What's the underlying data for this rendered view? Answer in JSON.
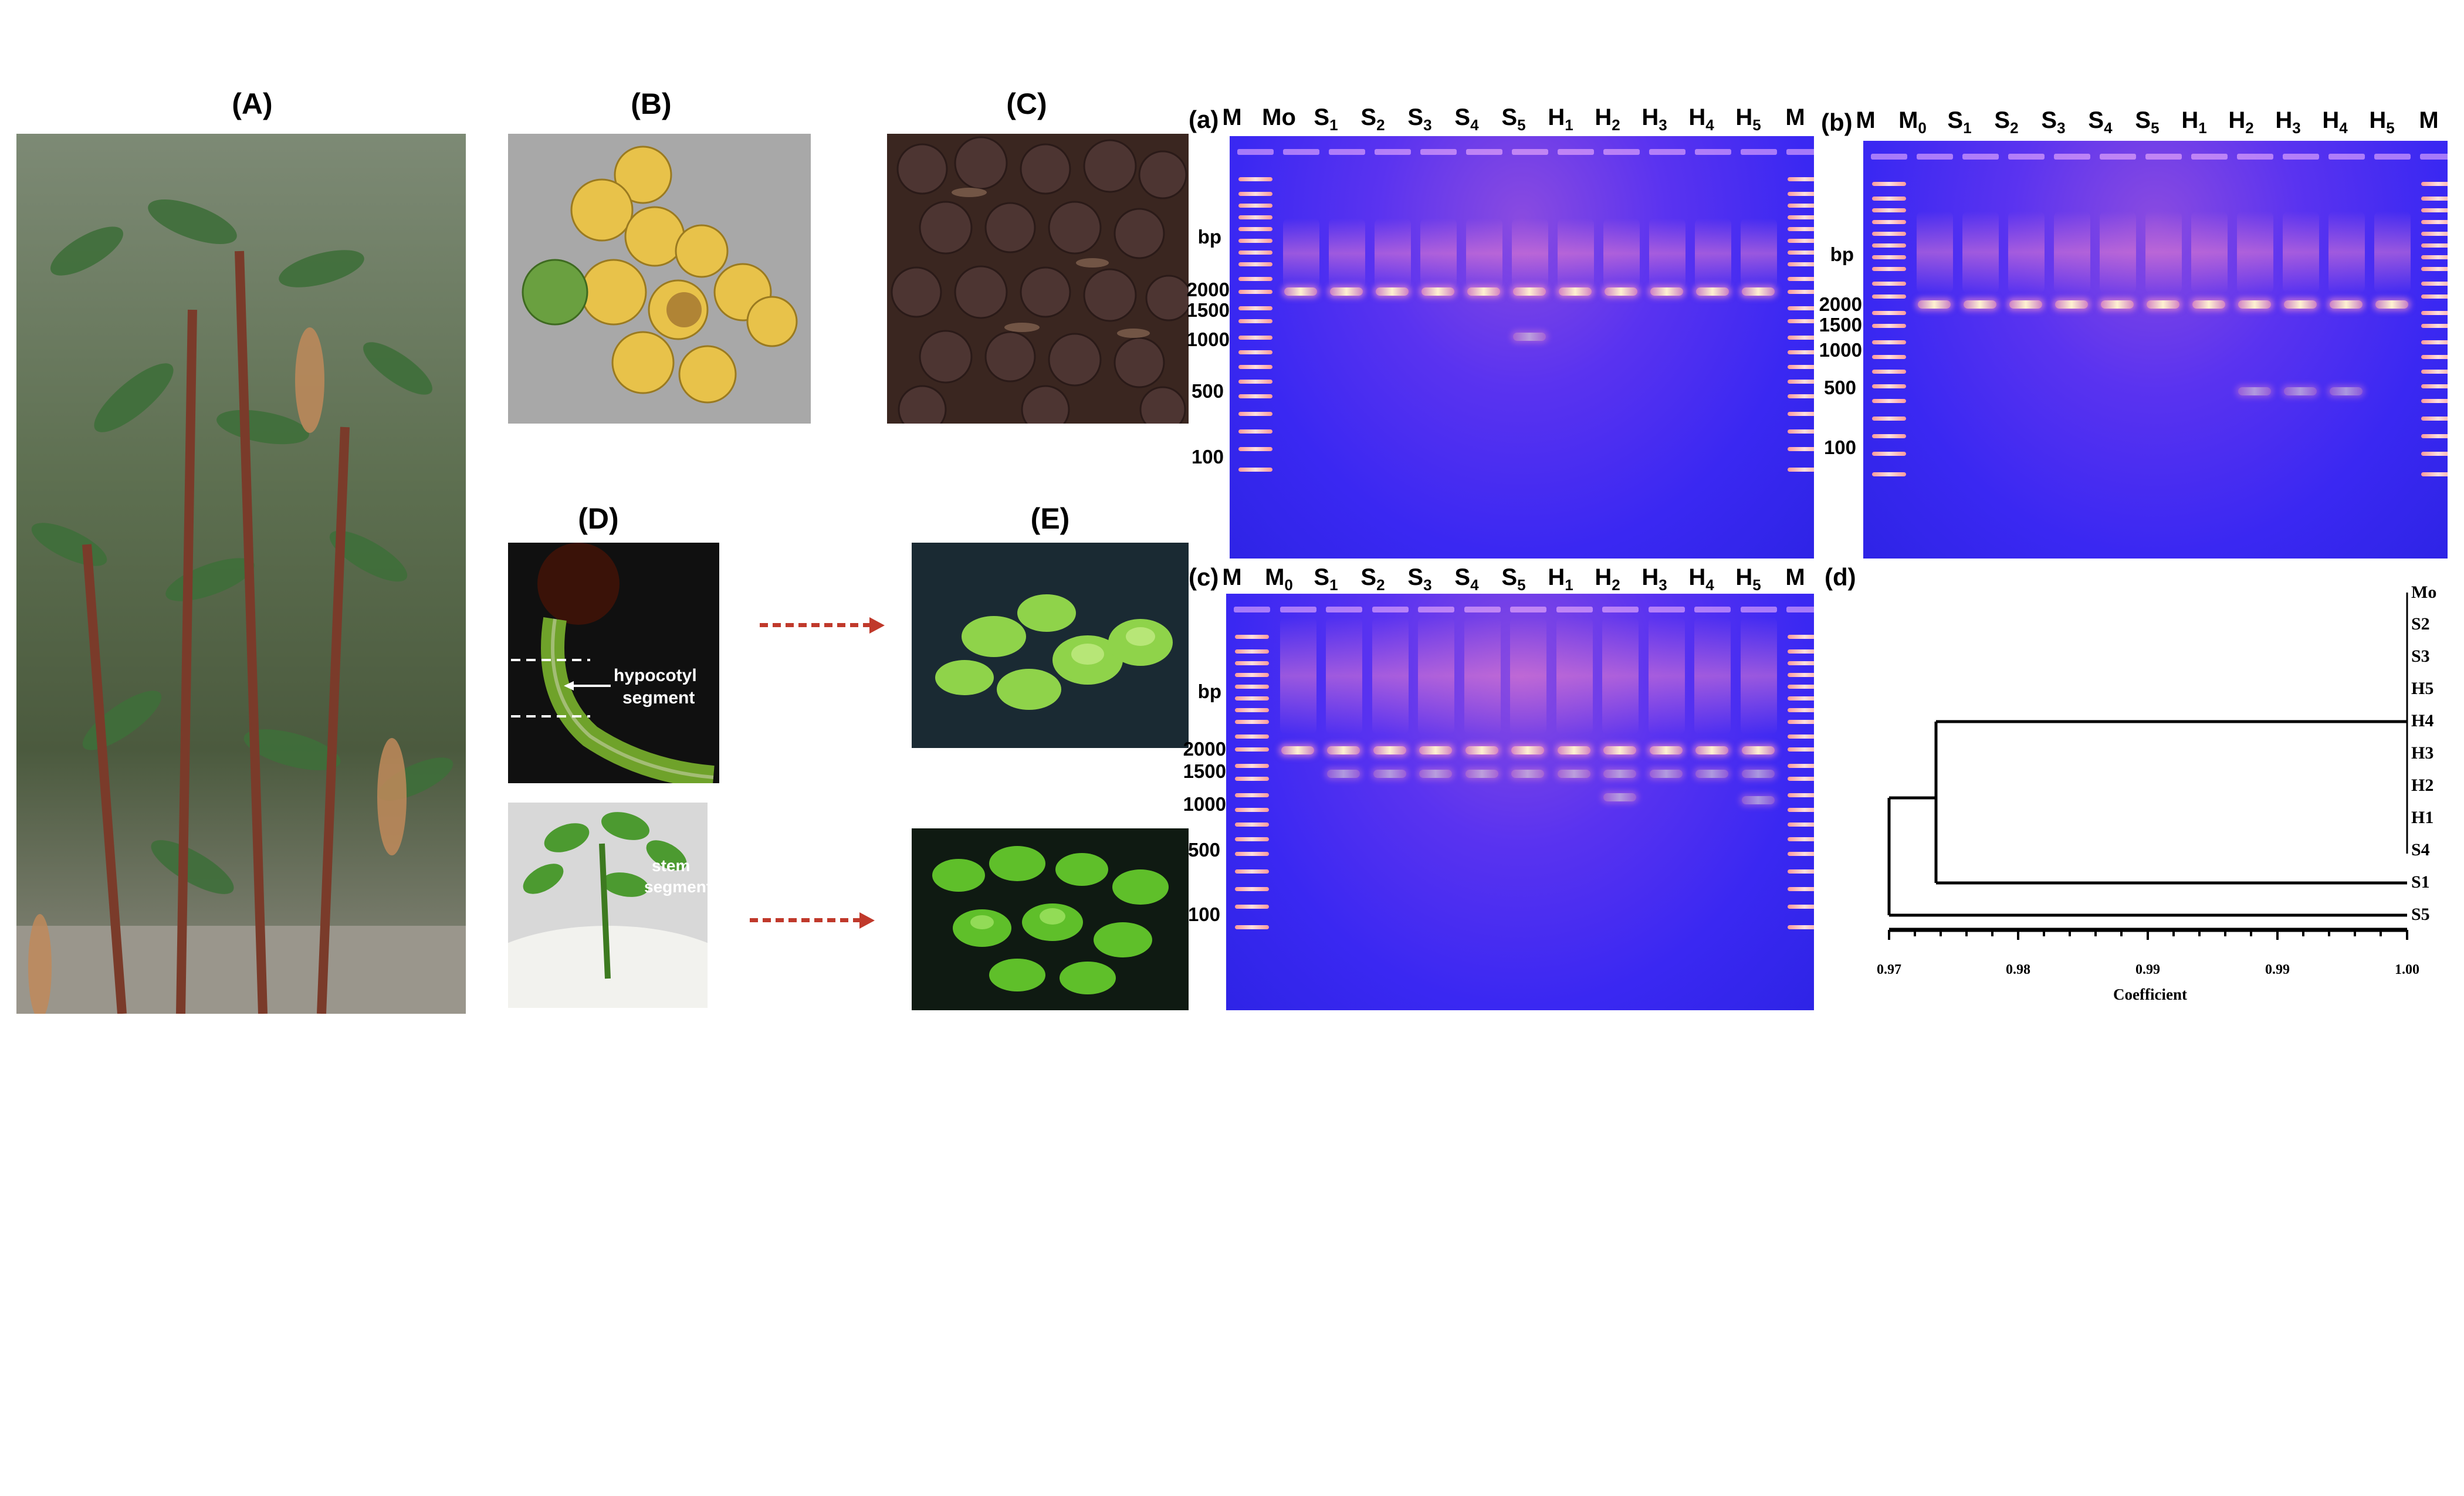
{
  "panels": {
    "A": "(A)",
    "B": "(B)",
    "C": "(C)",
    "D": "(D)",
    "E": "(E)",
    "a": "(a)",
    "b": "(b)",
    "c": "(c)",
    "d": "(d)"
  },
  "annotations": {
    "hypocotyl_line1": "hypocotyl",
    "hypocotyl_line2": "segment",
    "stem_line1": "stem",
    "stem_line2": "segment"
  },
  "gel_a": {
    "lanes": [
      {
        "base": "M",
        "sub": ""
      },
      {
        "base": "Mo",
        "sub": ""
      },
      {
        "base": "S",
        "sub": "1"
      },
      {
        "base": "S",
        "sub": "2"
      },
      {
        "base": "S",
        "sub": "3"
      },
      {
        "base": "S",
        "sub": "4"
      },
      {
        "base": "S",
        "sub": "5"
      },
      {
        "base": "H",
        "sub": "1"
      },
      {
        "base": "H",
        "sub": "2"
      },
      {
        "base": "H",
        "sub": "3"
      },
      {
        "base": "H",
        "sub": "4"
      },
      {
        "base": "H",
        "sub": "5"
      },
      {
        "base": "M",
        "sub": ""
      }
    ],
    "bp_labels": [
      "bp",
      "2000",
      "1500",
      "1000",
      "500",
      "100"
    ]
  },
  "gel_b": {
    "lanes": [
      {
        "base": "M",
        "sub": ""
      },
      {
        "base": "M",
        "sub": "0"
      },
      {
        "base": "S",
        "sub": "1"
      },
      {
        "base": "S",
        "sub": "2"
      },
      {
        "base": "S",
        "sub": "3"
      },
      {
        "base": "S",
        "sub": "4"
      },
      {
        "base": "S",
        "sub": "5"
      },
      {
        "base": "H",
        "sub": "1"
      },
      {
        "base": "H",
        "sub": "2"
      },
      {
        "base": "H",
        "sub": "3"
      },
      {
        "base": "H",
        "sub": "4"
      },
      {
        "base": "H",
        "sub": "5"
      },
      {
        "base": "M",
        "sub": ""
      }
    ],
    "bp_labels": [
      "bp",
      "2000",
      "1500",
      "1000",
      "500",
      "100"
    ]
  },
  "gel_c": {
    "lanes": [
      {
        "base": "M",
        "sub": ""
      },
      {
        "base": "M",
        "sub": "0"
      },
      {
        "base": "S",
        "sub": "1"
      },
      {
        "base": "S",
        "sub": "2"
      },
      {
        "base": "S",
        "sub": "3"
      },
      {
        "base": "S",
        "sub": "4"
      },
      {
        "base": "S",
        "sub": "5"
      },
      {
        "base": "H",
        "sub": "1"
      },
      {
        "base": "H",
        "sub": "2"
      },
      {
        "base": "H",
        "sub": "3"
      },
      {
        "base": "H",
        "sub": "4"
      },
      {
        "base": "H",
        "sub": "5"
      },
      {
        "base": "M",
        "sub": ""
      }
    ],
    "bp_labels": [
      "bp",
      "2000",
      "1500",
      "1000",
      "500",
      "100"
    ]
  },
  "dendrogram": {
    "leaves": [
      "Mo",
      "S2",
      "S3",
      "H5",
      "H4",
      "H3",
      "H2",
      "H1",
      "S4",
      "S1",
      "S5"
    ],
    "axis_ticks": [
      "0.97",
      "0.98",
      "0.99",
      "0.99",
      "1.00"
    ],
    "axis_title": "Coefficient"
  },
  "colors": {
    "gel_bg": "#3a28f2",
    "arrow": "#c0392b"
  }
}
